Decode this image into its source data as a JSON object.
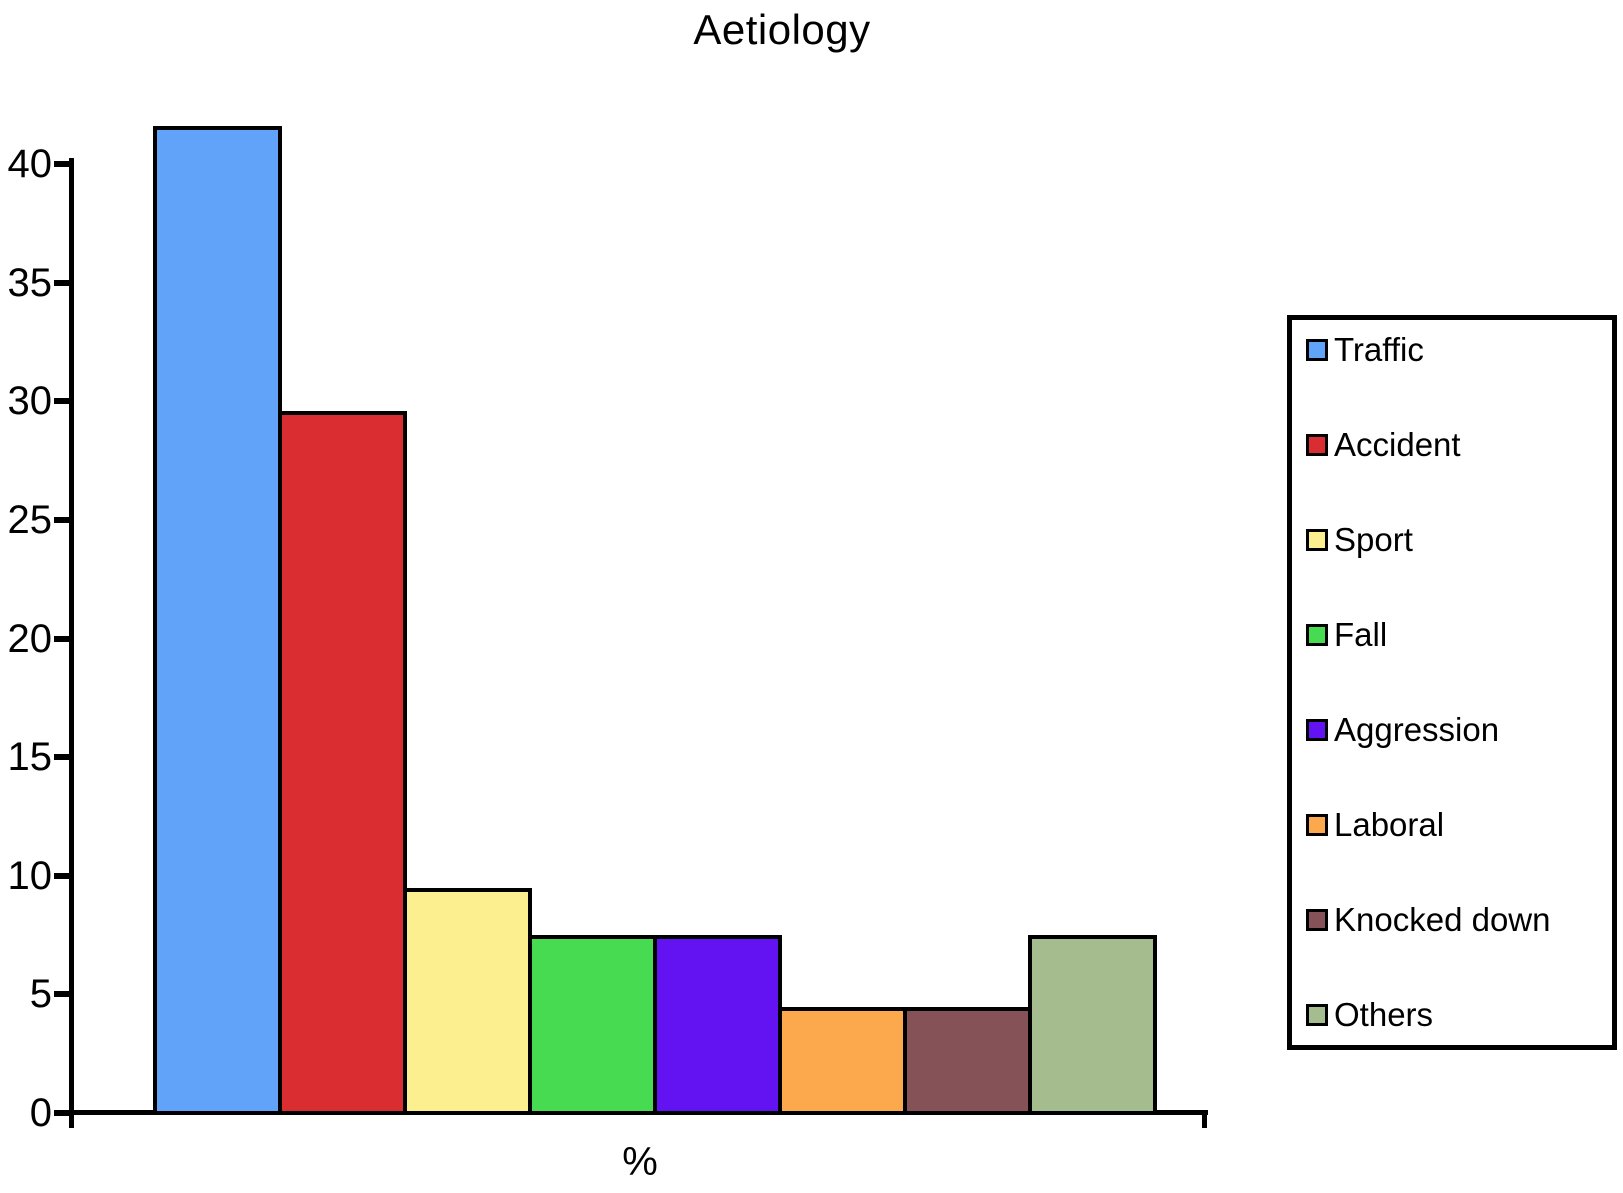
{
  "chart_data": {
    "type": "bar",
    "title": "Aetiology",
    "xlabel": "%",
    "ylabel": "",
    "ylim": [
      0,
      43
    ],
    "yticks": [
      0,
      5,
      10,
      15,
      20,
      25,
      30,
      35,
      40
    ],
    "grid": false,
    "legend_position": "right",
    "categories": [
      "Traffic",
      "Accident",
      "Sport",
      "Fall",
      "Aggression",
      "Laboral",
      "Knocked down",
      "Others"
    ],
    "values": [
      41.5,
      29.5,
      9.4,
      7.4,
      7.4,
      4.4,
      4.4,
      7.4
    ],
    "colors": [
      "#61A3F8",
      "#D92D32",
      "#FCEF8F",
      "#47DB52",
      "#6312F2",
      "#FCA84C",
      "#845257",
      "#A4BC8E"
    ],
    "bar_border_color": "#000000",
    "axis_color": "#000000"
  }
}
